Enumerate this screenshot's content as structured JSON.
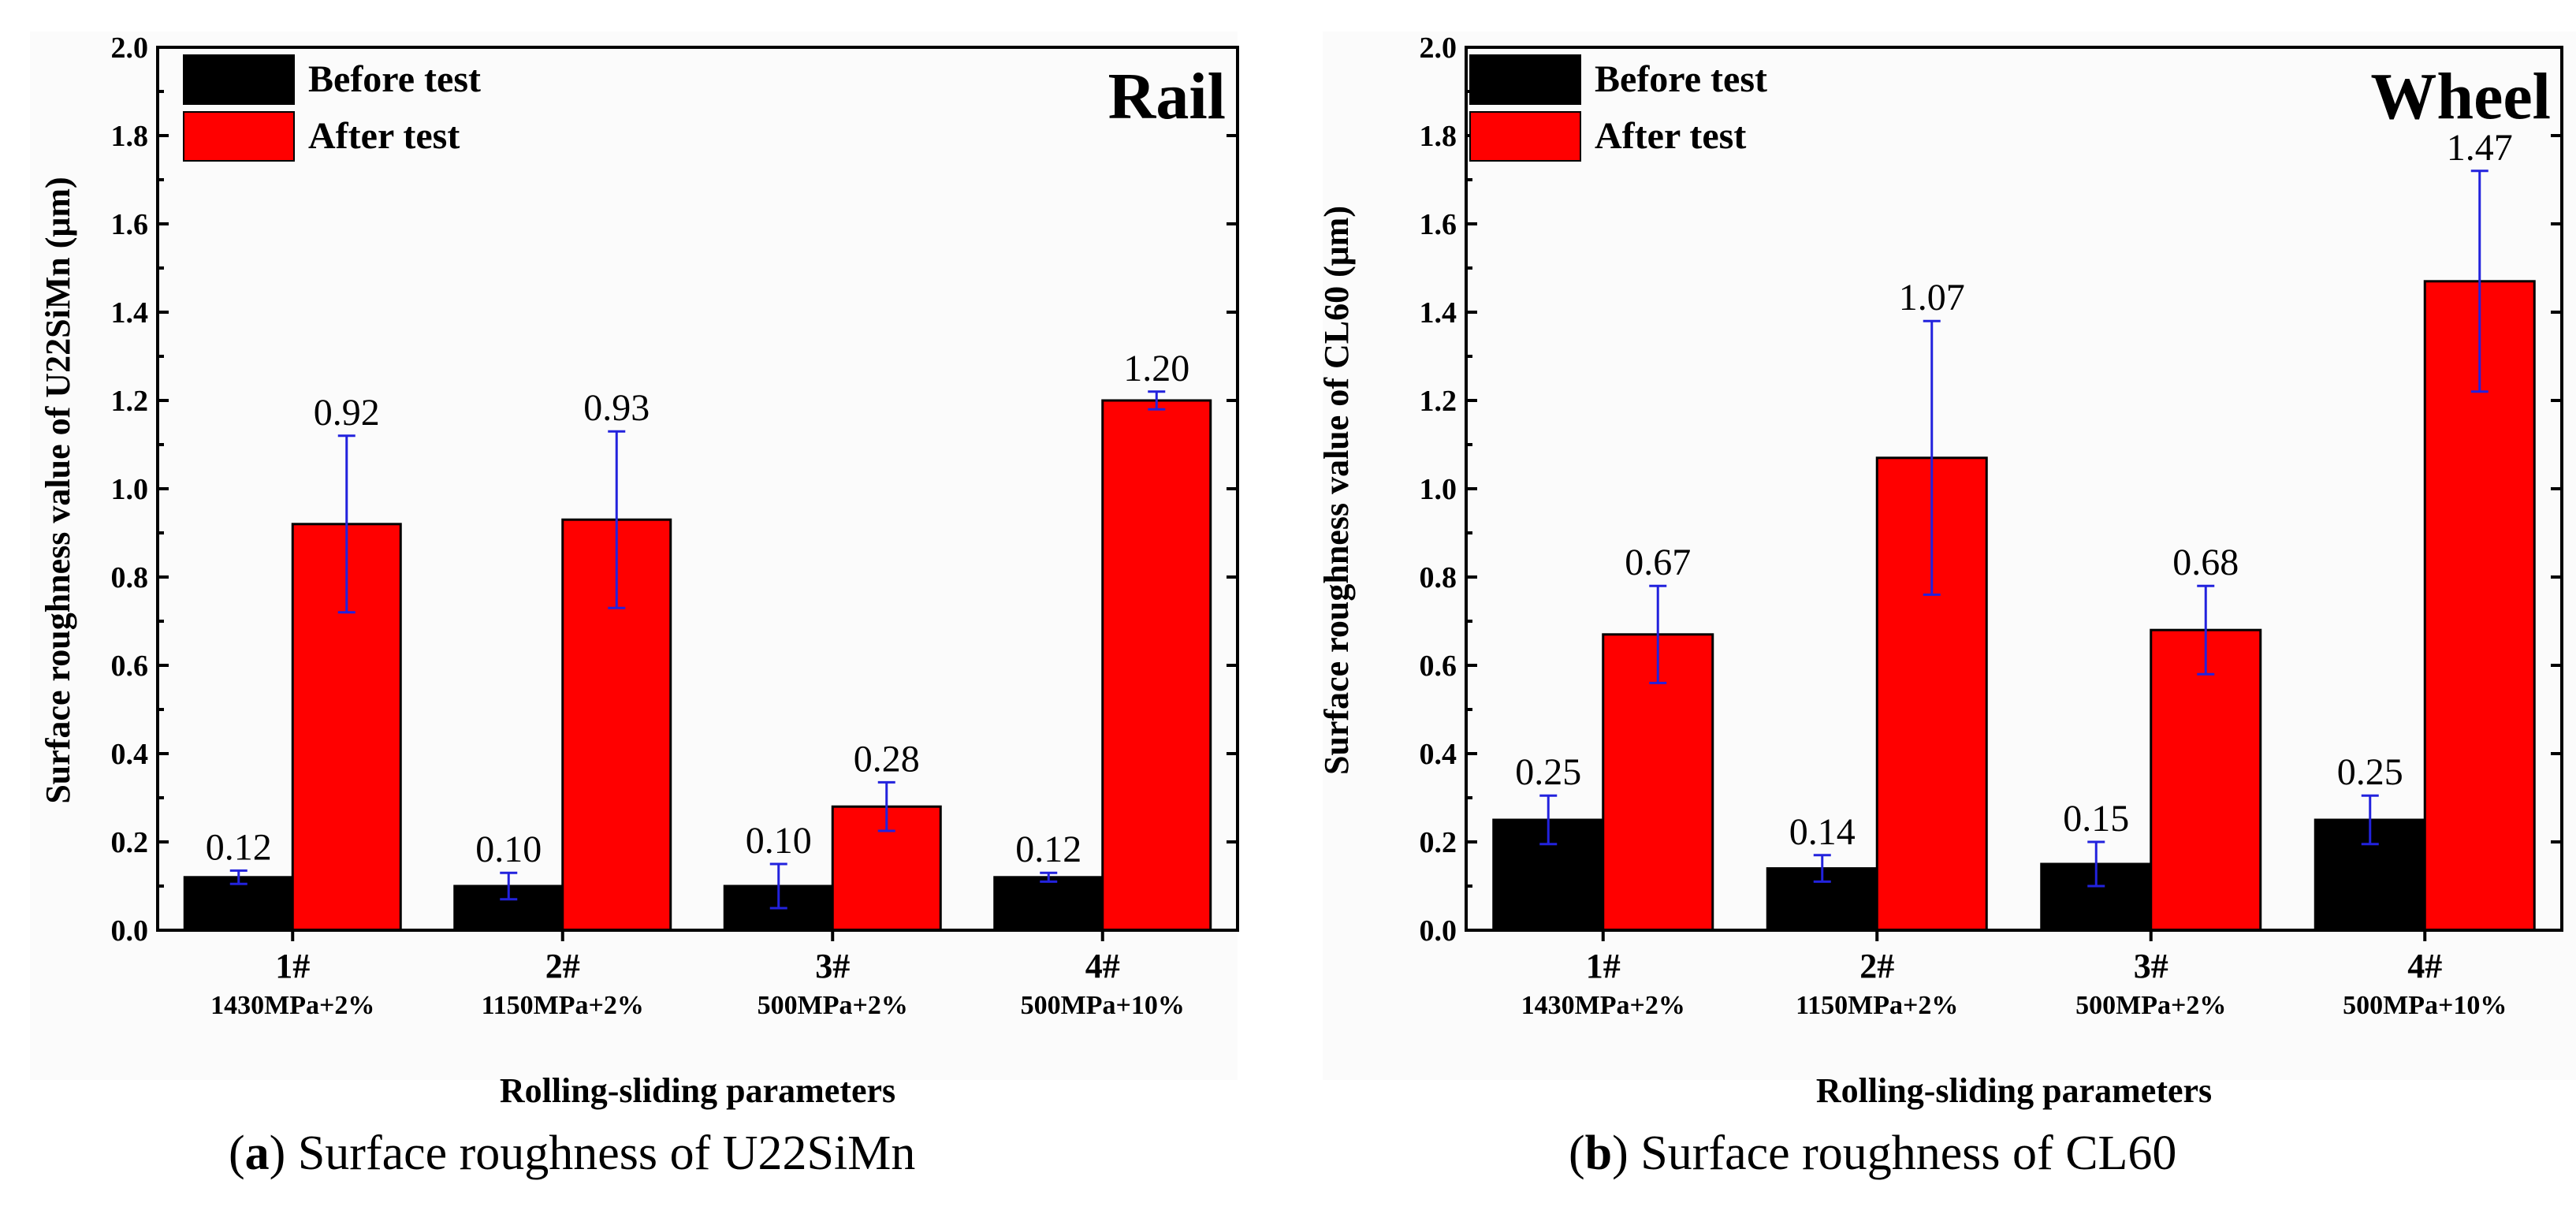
{
  "chart_data": [
    {
      "type": "bar",
      "title": "Rail",
      "xlabel": "Rolling-sliding parameters",
      "ylabel": "Surface roughness value of U22SiMn (μm)",
      "ylim": [
        0,
        2.0
      ],
      "yticks": [
        "0.0",
        "0.2",
        "0.4",
        "0.6",
        "0.8",
        "1.0",
        "1.2",
        "1.4",
        "1.6",
        "1.8",
        "2.0"
      ],
      "categories": [
        "1#",
        "2#",
        "3#",
        "4#"
      ],
      "category_sublabels": [
        "1430MPa+2%",
        "1150MPa+2%",
        "500MPa+2%",
        "500MPa+10%"
      ],
      "legend_position": "top-left",
      "series": [
        {
          "name": "Before test",
          "color": "#000000",
          "values": [
            0.12,
            0.1,
            0.1,
            0.12
          ],
          "errors": [
            0.015,
            0.03,
            0.05,
            0.01
          ],
          "labels": [
            "0.12",
            "0.10",
            "0.10",
            "0.12"
          ]
        },
        {
          "name": "After test",
          "color": "#ff0000",
          "values": [
            0.92,
            0.93,
            0.28,
            1.2
          ],
          "errors": [
            0.2,
            0.2,
            0.055,
            0.02
          ],
          "labels": [
            "0.92",
            "0.93",
            "0.28",
            "1.20"
          ]
        }
      ]
    },
    {
      "type": "bar",
      "title": "Wheel",
      "xlabel": "Rolling-sliding parameters",
      "ylabel": "Surface roughness value of CL60 (μm)",
      "ylim": [
        0,
        2.0
      ],
      "yticks": [
        "0.0",
        "0.2",
        "0.4",
        "0.6",
        "0.8",
        "1.0",
        "1.2",
        "1.4",
        "1.6",
        "1.8",
        "2.0"
      ],
      "categories": [
        "1#",
        "2#",
        "3#",
        "4#"
      ],
      "category_sublabels": [
        "1430MPa+2%",
        "1150MPa+2%",
        "500MPa+2%",
        "500MPa+10%"
      ],
      "legend_position": "top-left",
      "series": [
        {
          "name": "Before test",
          "color": "#000000",
          "values": [
            0.25,
            0.14,
            0.15,
            0.25
          ],
          "errors": [
            0.055,
            0.03,
            0.05,
            0.055
          ],
          "labels": [
            "0.25",
            "0.14",
            "0.15",
            "0.25"
          ]
        },
        {
          "name": "After test",
          "color": "#ff0000",
          "values": [
            0.67,
            1.07,
            0.68,
            1.47
          ],
          "errors": [
            0.11,
            0.31,
            0.1,
            0.25
          ],
          "labels": [
            "0.67",
            "1.07",
            "0.68",
            "1.47"
          ]
        }
      ]
    }
  ],
  "captions": [
    {
      "letter": "a",
      "text": " Surface roughness of U22SiMn"
    },
    {
      "letter": "b",
      "text": " Surface roughness of CL60"
    }
  ]
}
